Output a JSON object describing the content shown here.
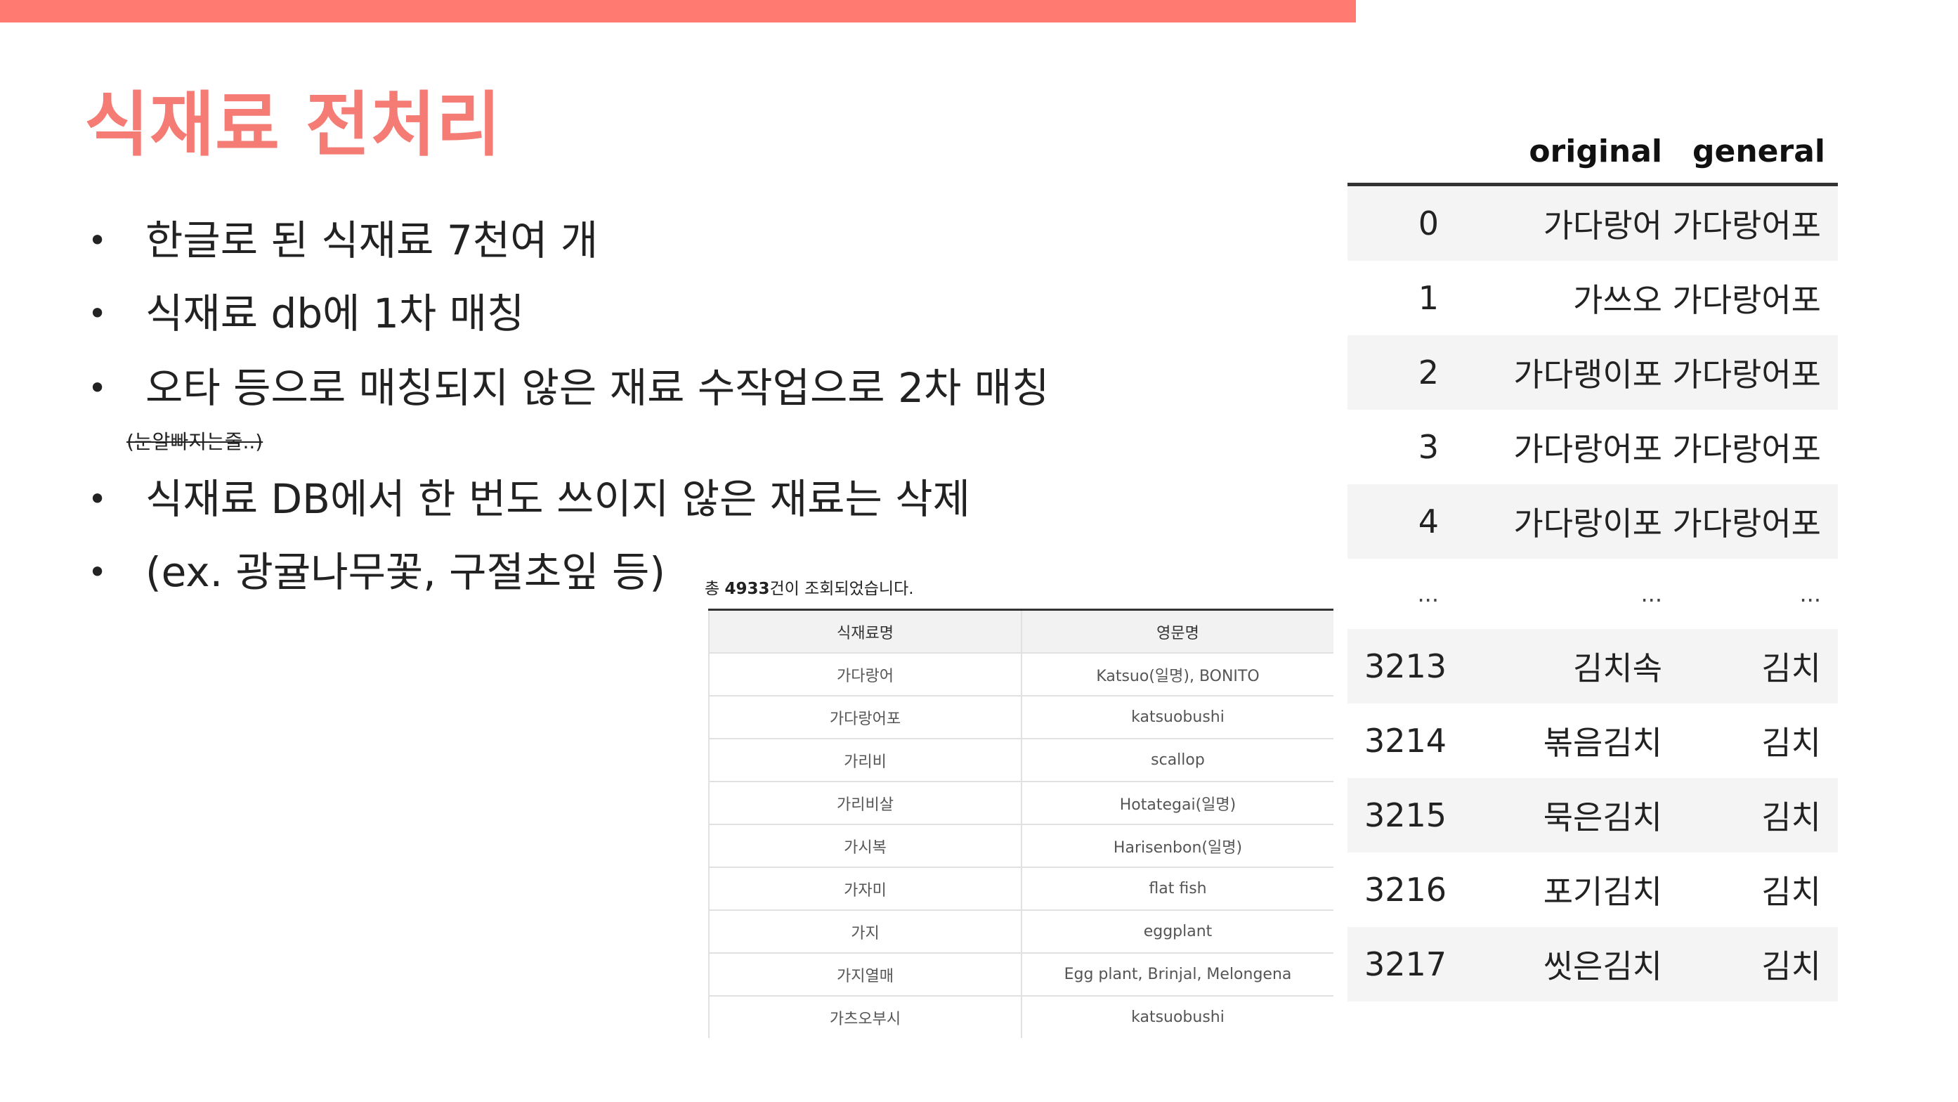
{
  "slide": {
    "title": "식재료 전처리",
    "bullets": [
      "한글로 된 식재료 7천여 개",
      "식재료 db에 1차 매칭",
      "오타 등으로 매칭되지 않은 재료 수작업으로 2차 매칭",
      "식재료 DB에서 한 번도 쓰이지 않은 재료는 삭제",
      "(ex. 광귤나무꽃, 구절초잎 등)"
    ],
    "bullet_symbol": "•",
    "strikethrough_note": "(눈알빠지는줄..)"
  },
  "ingredient_table": {
    "caption_prefix": "총 ",
    "caption_count": "4933",
    "caption_suffix": "건이 조회되었습니다.",
    "columns": [
      "식재료명",
      "영문명"
    ],
    "rows": [
      [
        "가다랑어",
        "Katsuo(일명), BONITO"
      ],
      [
        "가다랑어포",
        "katsuobushi"
      ],
      [
        "가리비",
        "scallop"
      ],
      [
        "가리비살",
        "Hotategai(일명)"
      ],
      [
        "가시복",
        "Harisenbon(일명)"
      ],
      [
        "가자미",
        "flat fish"
      ],
      [
        "가지",
        "eggplant"
      ],
      [
        "가지열매",
        "Egg plant, Brinjal, Melongena"
      ],
      [
        "가츠오부시",
        "katsuobushi"
      ]
    ]
  },
  "dataframe": {
    "columns": [
      "original",
      "general"
    ],
    "rows_top": [
      [
        "0",
        "가다랑어",
        "가다랑어포"
      ],
      [
        "1",
        "가쓰오",
        "가다랑어포"
      ],
      [
        "2",
        "가다랭이포",
        "가다랑어포"
      ],
      [
        "3",
        "가다랑어포",
        "가다랑어포"
      ],
      [
        "4",
        "가다랑이포",
        "가다랑어포"
      ]
    ],
    "ellipsis": [
      "...",
      "...",
      "..."
    ],
    "rows_bottom": [
      [
        "3213",
        "김치속",
        "김치"
      ],
      [
        "3214",
        "볶음김치",
        "김치"
      ],
      [
        "3215",
        "묵은김치",
        "김치"
      ],
      [
        "3216",
        "포기김치",
        "김치"
      ],
      [
        "3217",
        "씻은김치",
        "김치"
      ]
    ]
  }
}
